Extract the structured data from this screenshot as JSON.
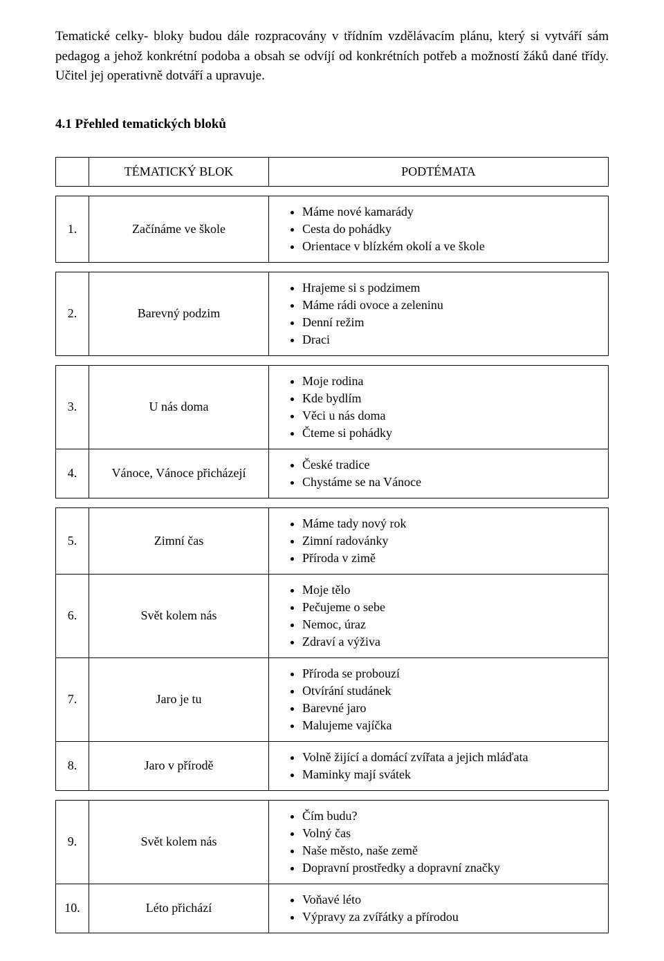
{
  "intro_text": "Tematické celky- bloky budou dále rozpracovány v třídním vzdělávacím plánu, který si vytváří sám pedagog a jehož konkrétní podoba a obsah se odvíjí od konkrétních potřeb a možností žáků dané třídy. Učitel jej operativně dotváří a upravuje.",
  "section_heading": "4.1 Přehled tematických bloků",
  "table": {
    "header_block": "TÉMATICKÝ BLOK",
    "header_sub": "PODTÉMATA",
    "groups": [
      {
        "rows": [
          {
            "num": "1.",
            "block": "Začínáme ve škole",
            "subs": [
              "Máme nové kamarády",
              "Cesta do pohádky",
              "Orientace v blízkém okolí a ve škole"
            ]
          }
        ]
      },
      {
        "rows": [
          {
            "num": "2.",
            "block": "Barevný podzim",
            "subs": [
              "Hrajeme si s podzimem",
              "Máme rádi ovoce a zeleninu",
              "Denní režim",
              "Draci"
            ]
          }
        ]
      },
      {
        "rows": [
          {
            "num": "3.",
            "block": "U nás doma",
            "subs": [
              "Moje rodina",
              "Kde bydlím",
              "Věci u nás doma",
              "Čteme si pohádky"
            ]
          },
          {
            "num": "4.",
            "block": "Vánoce, Vánoce přicházejí",
            "subs": [
              "České tradice",
              "Chystáme se na Vánoce"
            ]
          }
        ]
      },
      {
        "rows": [
          {
            "num": "5.",
            "block": "Zimní čas",
            "subs": [
              "Máme tady nový rok",
              "Zimní radovánky",
              "Příroda v zimě"
            ]
          },
          {
            "num": "6.",
            "block": "Svět kolem nás",
            "subs": [
              "Moje tělo",
              "Pečujeme o sebe",
              "Nemoc, úraz",
              "Zdraví a výživa"
            ]
          },
          {
            "num": "7.",
            "block": "Jaro je tu",
            "subs": [
              "Příroda se probouzí",
              "Otvírání studánek",
              "Barevné jaro",
              "Malujeme vajíčka"
            ]
          },
          {
            "num": "8.",
            "block": "Jaro v přírodě",
            "subs": [
              "Volně žijící a domácí zvířata a jejich mláďata",
              "Maminky mají svátek"
            ]
          }
        ]
      },
      {
        "rows": [
          {
            "num": "9.",
            "block": "Svět kolem nás",
            "subs": [
              "Čím budu?",
              "Volný čas",
              "Naše město, naše země",
              "Dopravní prostředky a dopravní značky"
            ]
          },
          {
            "num": "10.",
            "block": "Léto přichází",
            "subs": [
              "Voňavé léto",
              "Výpravy za zvířátky a přírodou"
            ]
          }
        ]
      }
    ]
  }
}
